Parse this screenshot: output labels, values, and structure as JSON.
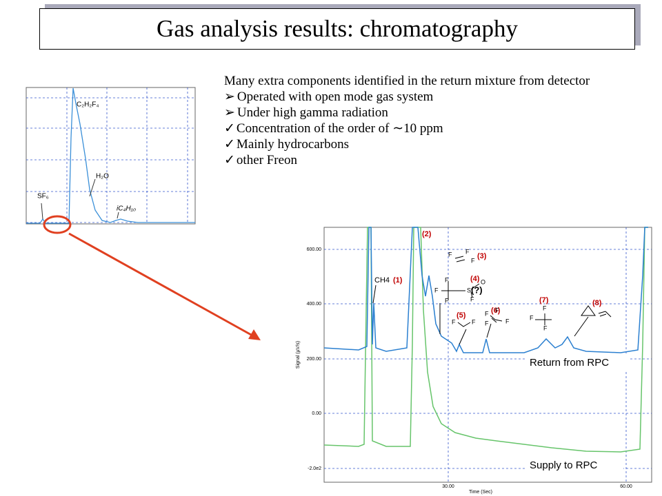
{
  "title": "Gas analysis results: chromatography",
  "text": {
    "intro": "Many extra components identified in the return mixture from detector",
    "arrow_items": [
      "Operated with open mode gas system",
      "Under high gamma radiation"
    ],
    "check_items": [
      "Concentration of the order of ∼10 ppm",
      "Mainly hydrocarbons",
      "other Freon"
    ]
  },
  "small_chart": {
    "peak_labels": [
      "C₂H₂F₄",
      "H₂O",
      "SF₆",
      "iC₄H₁₀"
    ]
  },
  "large_chart": {
    "y_axis_label": "Signal (µV/s)",
    "x_axis_label": "Time (Sec)",
    "yticks": [
      "600.00",
      "400.00",
      "200.00",
      "0.00",
      "-2.0e2"
    ],
    "xticks": [
      "30.00",
      "60.00"
    ],
    "peak_labels": [
      "CH4",
      "(1)",
      "(2)",
      "(3)",
      "(4)",
      "(?)",
      "(5)",
      "(6)",
      "(7)",
      "(8)"
    ],
    "molecule_atoms": [
      "F",
      "F",
      "F",
      "F",
      "F",
      "F",
      "S",
      "O",
      "F",
      "F",
      "F",
      "F",
      "F",
      "F",
      "F",
      "F",
      "F",
      "F"
    ],
    "series_labels": [
      "Return from RPC",
      "Supply to RPC"
    ]
  }
}
